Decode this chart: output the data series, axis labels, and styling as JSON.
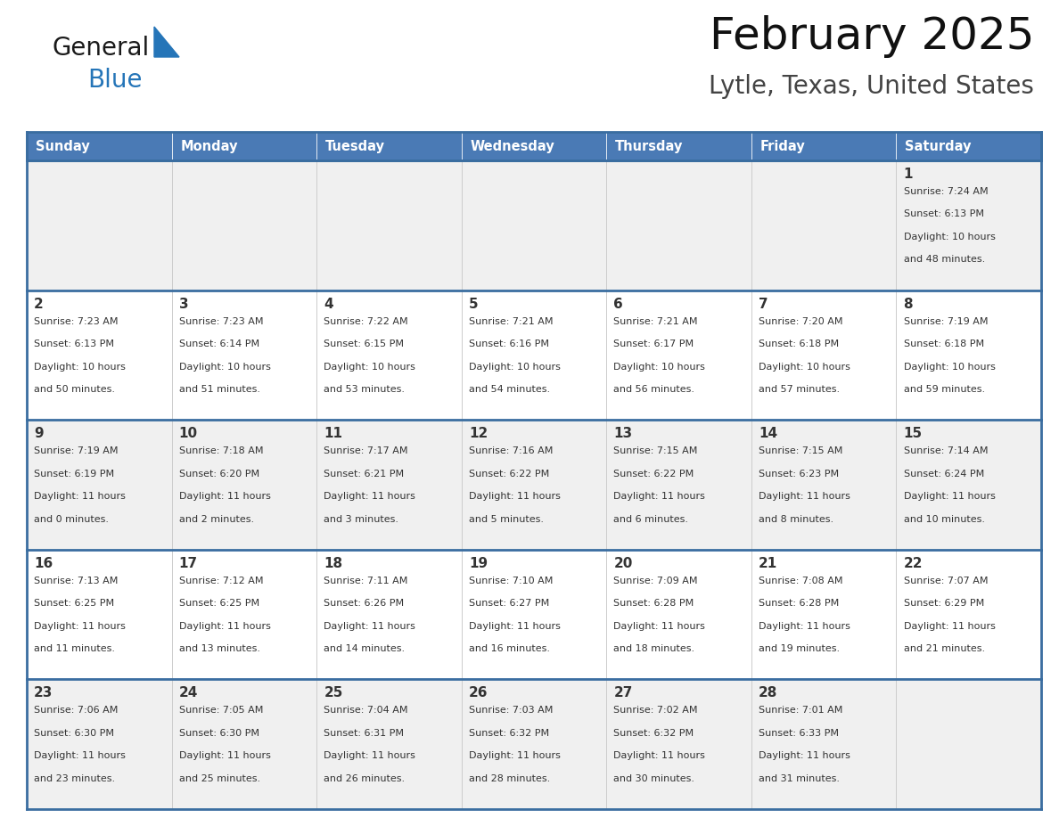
{
  "title": "February 2025",
  "subtitle": "Lytle, Texas, United States",
  "days_of_week": [
    "Sunday",
    "Monday",
    "Tuesday",
    "Wednesday",
    "Thursday",
    "Friday",
    "Saturday"
  ],
  "header_bg": "#4a7ab5",
  "header_text": "#ffffff",
  "row_bg_odd": "#f0f0f0",
  "row_bg_even": "#ffffff",
  "border_color": "#3a6da0",
  "cell_border_color": "#cccccc",
  "text_color": "#333333",
  "day_num_color": "#333333",
  "logo_general_color": "#1a1a1a",
  "logo_blue_color": "#2575b8",
  "logo_triangle_color": "#2575b8",
  "calendar_data": [
    [
      {
        "day": "",
        "sunrise": "",
        "sunset": "",
        "daylight_line1": "",
        "daylight_line2": ""
      },
      {
        "day": "",
        "sunrise": "",
        "sunset": "",
        "daylight_line1": "",
        "daylight_line2": ""
      },
      {
        "day": "",
        "sunrise": "",
        "sunset": "",
        "daylight_line1": "",
        "daylight_line2": ""
      },
      {
        "day": "",
        "sunrise": "",
        "sunset": "",
        "daylight_line1": "",
        "daylight_line2": ""
      },
      {
        "day": "",
        "sunrise": "",
        "sunset": "",
        "daylight_line1": "",
        "daylight_line2": ""
      },
      {
        "day": "",
        "sunrise": "",
        "sunset": "",
        "daylight_line1": "",
        "daylight_line2": ""
      },
      {
        "day": "1",
        "sunrise": "Sunrise: 7:24 AM",
        "sunset": "Sunset: 6:13 PM",
        "daylight_line1": "Daylight: 10 hours",
        "daylight_line2": "and 48 minutes."
      }
    ],
    [
      {
        "day": "2",
        "sunrise": "Sunrise: 7:23 AM",
        "sunset": "Sunset: 6:13 PM",
        "daylight_line1": "Daylight: 10 hours",
        "daylight_line2": "and 50 minutes."
      },
      {
        "day": "3",
        "sunrise": "Sunrise: 7:23 AM",
        "sunset": "Sunset: 6:14 PM",
        "daylight_line1": "Daylight: 10 hours",
        "daylight_line2": "and 51 minutes."
      },
      {
        "day": "4",
        "sunrise": "Sunrise: 7:22 AM",
        "sunset": "Sunset: 6:15 PM",
        "daylight_line1": "Daylight: 10 hours",
        "daylight_line2": "and 53 minutes."
      },
      {
        "day": "5",
        "sunrise": "Sunrise: 7:21 AM",
        "sunset": "Sunset: 6:16 PM",
        "daylight_line1": "Daylight: 10 hours",
        "daylight_line2": "and 54 minutes."
      },
      {
        "day": "6",
        "sunrise": "Sunrise: 7:21 AM",
        "sunset": "Sunset: 6:17 PM",
        "daylight_line1": "Daylight: 10 hours",
        "daylight_line2": "and 56 minutes."
      },
      {
        "day": "7",
        "sunrise": "Sunrise: 7:20 AM",
        "sunset": "Sunset: 6:18 PM",
        "daylight_line1": "Daylight: 10 hours",
        "daylight_line2": "and 57 minutes."
      },
      {
        "day": "8",
        "sunrise": "Sunrise: 7:19 AM",
        "sunset": "Sunset: 6:18 PM",
        "daylight_line1": "Daylight: 10 hours",
        "daylight_line2": "and 59 minutes."
      }
    ],
    [
      {
        "day": "9",
        "sunrise": "Sunrise: 7:19 AM",
        "sunset": "Sunset: 6:19 PM",
        "daylight_line1": "Daylight: 11 hours",
        "daylight_line2": "and 0 minutes."
      },
      {
        "day": "10",
        "sunrise": "Sunrise: 7:18 AM",
        "sunset": "Sunset: 6:20 PM",
        "daylight_line1": "Daylight: 11 hours",
        "daylight_line2": "and 2 minutes."
      },
      {
        "day": "11",
        "sunrise": "Sunrise: 7:17 AM",
        "sunset": "Sunset: 6:21 PM",
        "daylight_line1": "Daylight: 11 hours",
        "daylight_line2": "and 3 minutes."
      },
      {
        "day": "12",
        "sunrise": "Sunrise: 7:16 AM",
        "sunset": "Sunset: 6:22 PM",
        "daylight_line1": "Daylight: 11 hours",
        "daylight_line2": "and 5 minutes."
      },
      {
        "day": "13",
        "sunrise": "Sunrise: 7:15 AM",
        "sunset": "Sunset: 6:22 PM",
        "daylight_line1": "Daylight: 11 hours",
        "daylight_line2": "and 6 minutes."
      },
      {
        "day": "14",
        "sunrise": "Sunrise: 7:15 AM",
        "sunset": "Sunset: 6:23 PM",
        "daylight_line1": "Daylight: 11 hours",
        "daylight_line2": "and 8 minutes."
      },
      {
        "day": "15",
        "sunrise": "Sunrise: 7:14 AM",
        "sunset": "Sunset: 6:24 PM",
        "daylight_line1": "Daylight: 11 hours",
        "daylight_line2": "and 10 minutes."
      }
    ],
    [
      {
        "day": "16",
        "sunrise": "Sunrise: 7:13 AM",
        "sunset": "Sunset: 6:25 PM",
        "daylight_line1": "Daylight: 11 hours",
        "daylight_line2": "and 11 minutes."
      },
      {
        "day": "17",
        "sunrise": "Sunrise: 7:12 AM",
        "sunset": "Sunset: 6:25 PM",
        "daylight_line1": "Daylight: 11 hours",
        "daylight_line2": "and 13 minutes."
      },
      {
        "day": "18",
        "sunrise": "Sunrise: 7:11 AM",
        "sunset": "Sunset: 6:26 PM",
        "daylight_line1": "Daylight: 11 hours",
        "daylight_line2": "and 14 minutes."
      },
      {
        "day": "19",
        "sunrise": "Sunrise: 7:10 AM",
        "sunset": "Sunset: 6:27 PM",
        "daylight_line1": "Daylight: 11 hours",
        "daylight_line2": "and 16 minutes."
      },
      {
        "day": "20",
        "sunrise": "Sunrise: 7:09 AM",
        "sunset": "Sunset: 6:28 PM",
        "daylight_line1": "Daylight: 11 hours",
        "daylight_line2": "and 18 minutes."
      },
      {
        "day": "21",
        "sunrise": "Sunrise: 7:08 AM",
        "sunset": "Sunset: 6:28 PM",
        "daylight_line1": "Daylight: 11 hours",
        "daylight_line2": "and 19 minutes."
      },
      {
        "day": "22",
        "sunrise": "Sunrise: 7:07 AM",
        "sunset": "Sunset: 6:29 PM",
        "daylight_line1": "Daylight: 11 hours",
        "daylight_line2": "and 21 minutes."
      }
    ],
    [
      {
        "day": "23",
        "sunrise": "Sunrise: 7:06 AM",
        "sunset": "Sunset: 6:30 PM",
        "daylight_line1": "Daylight: 11 hours",
        "daylight_line2": "and 23 minutes."
      },
      {
        "day": "24",
        "sunrise": "Sunrise: 7:05 AM",
        "sunset": "Sunset: 6:30 PM",
        "daylight_line1": "Daylight: 11 hours",
        "daylight_line2": "and 25 minutes."
      },
      {
        "day": "25",
        "sunrise": "Sunrise: 7:04 AM",
        "sunset": "Sunset: 6:31 PM",
        "daylight_line1": "Daylight: 11 hours",
        "daylight_line2": "and 26 minutes."
      },
      {
        "day": "26",
        "sunrise": "Sunrise: 7:03 AM",
        "sunset": "Sunset: 6:32 PM",
        "daylight_line1": "Daylight: 11 hours",
        "daylight_line2": "and 28 minutes."
      },
      {
        "day": "27",
        "sunrise": "Sunrise: 7:02 AM",
        "sunset": "Sunset: 6:32 PM",
        "daylight_line1": "Daylight: 11 hours",
        "daylight_line2": "and 30 minutes."
      },
      {
        "day": "28",
        "sunrise": "Sunrise: 7:01 AM",
        "sunset": "Sunset: 6:33 PM",
        "daylight_line1": "Daylight: 11 hours",
        "daylight_line2": "and 31 minutes."
      },
      {
        "day": "",
        "sunrise": "",
        "sunset": "",
        "daylight_line1": "",
        "daylight_line2": ""
      }
    ]
  ]
}
